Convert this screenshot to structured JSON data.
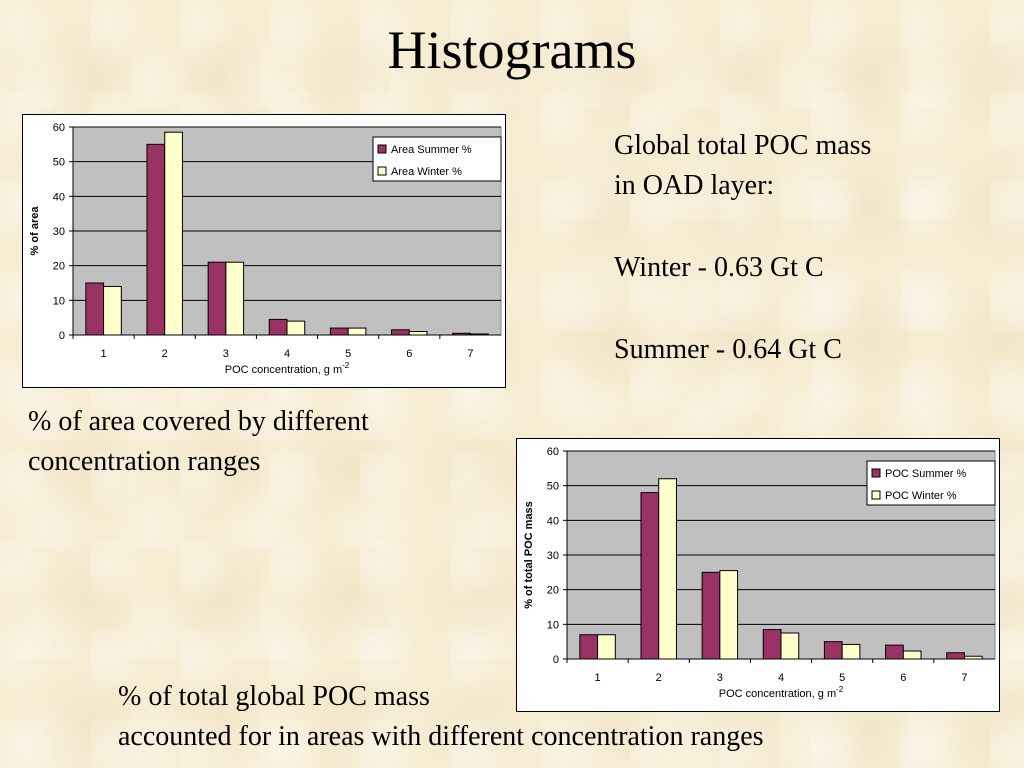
{
  "slide": {
    "title": "Histograms",
    "notes": [
      "Global total POC mass",
      "in OAD layer:",
      "Winter - 0.63 Gt C",
      "Summer - 0.64 Gt C"
    ],
    "caption_area": "% of area covered by different concentration ranges",
    "caption_mass_line1": "% of total global POC mass",
    "caption_mass_line2": "accounted for in areas with different concentration ranges"
  },
  "colors": {
    "summer": "#993366",
    "winter": "#ffffcc",
    "plot_background": "#c0c0c0"
  },
  "chart_data": [
    {
      "type": "bar",
      "categories": [
        "1",
        "2",
        "3",
        "4",
        "5",
        "6",
        "7"
      ],
      "series": [
        {
          "name": "Area Summer %",
          "values": [
            15,
            55,
            21,
            4.5,
            2,
            1.5,
            0.5
          ]
        },
        {
          "name": "Area Winter %",
          "values": [
            14,
            58.5,
            21,
            4,
            2,
            1,
            0.3
          ]
        }
      ],
      "xlabel": "POC concentration,  g m",
      "xlabel_sup": "-2",
      "ylabel": "% of area",
      "ylim": [
        0,
        60
      ],
      "yticks": [
        0,
        10,
        20,
        30,
        40,
        50,
        60
      ],
      "grid": true,
      "legend": "top-right"
    },
    {
      "type": "bar",
      "categories": [
        "1",
        "2",
        "3",
        "4",
        "5",
        "6",
        "7"
      ],
      "series": [
        {
          "name": "POC Summer %",
          "values": [
            7,
            48,
            25,
            8.5,
            5,
            4,
            1.8
          ]
        },
        {
          "name": "POC Winter %",
          "values": [
            7,
            52,
            25.5,
            7.5,
            4.2,
            2.3,
            0.8
          ]
        }
      ],
      "xlabel": "POC concentration,  g m",
      "xlabel_sup": "-2",
      "ylabel": "% of total POC mass",
      "ylim": [
        0,
        60
      ],
      "yticks": [
        0,
        10,
        20,
        30,
        40,
        50,
        60
      ],
      "grid": true,
      "legend": "top-right"
    }
  ]
}
